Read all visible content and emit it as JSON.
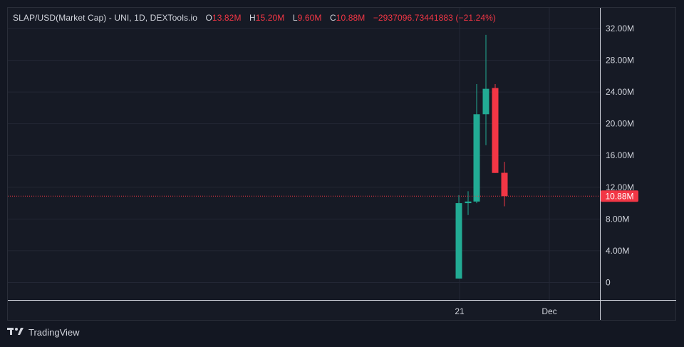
{
  "legend": {
    "symbol": "SLAP/USD(Market Cap)",
    "separator": " - ",
    "info": "UNI, 1D, DEXTools.io",
    "open_label": "O",
    "open_value": "13.82M",
    "high_label": "H",
    "high_value": "15.20M",
    "low_label": "L",
    "low_value": "9.60M",
    "close_label": "C",
    "close_value": "10.88M",
    "change": "−2937096.73441883 (−21.24%)"
  },
  "price_tag": "10.88M",
  "footer": {
    "brand": "TradingView"
  },
  "colors": {
    "up": "#22ab94",
    "down": "#f23645",
    "grid": "#232735",
    "background": "#161a25"
  },
  "chart_data": {
    "type": "candlestick",
    "y_ticks": [
      "0",
      "4.00M",
      "8.00M",
      "12.00M",
      "16.00M",
      "20.00M",
      "24.00M",
      "28.00M",
      "32.00M"
    ],
    "x_ticks": [
      "21",
      "Dec"
    ],
    "ylim": [
      -2.2,
      34.6
    ],
    "last_price": 10.88,
    "candles": [
      {
        "open": 0.5,
        "high": 11.0,
        "low": 0.5,
        "close": 10.0
      },
      {
        "open": 10.0,
        "high": 11.5,
        "low": 8.5,
        "close": 10.2
      },
      {
        "open": 10.2,
        "high": 25.0,
        "low": 10.0,
        "close": 21.2
      },
      {
        "open": 21.2,
        "high": 31.2,
        "low": 17.3,
        "close": 24.4
      },
      {
        "open": 24.5,
        "high": 25.0,
        "low": 13.8,
        "close": 13.8
      },
      {
        "open": 13.82,
        "high": 15.2,
        "low": 9.6,
        "close": 10.88
      }
    ]
  }
}
